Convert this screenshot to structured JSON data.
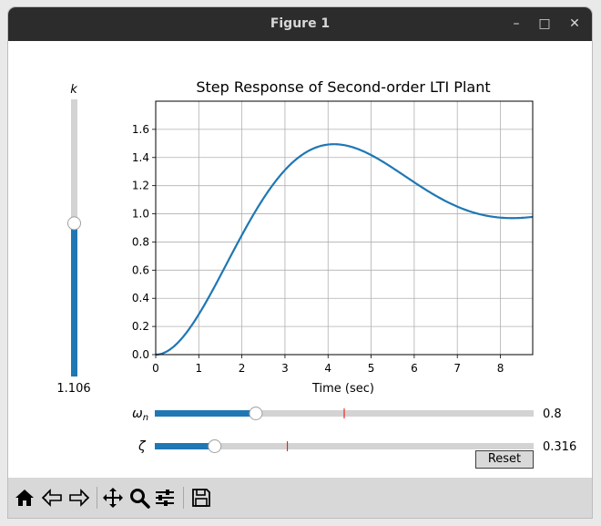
{
  "window": {
    "title": "Figure 1",
    "controls": {
      "minimize": "–",
      "maximize": "□",
      "close": "✕"
    }
  },
  "sliders": {
    "k": {
      "label": "k",
      "value_text": "1.106",
      "min": 0,
      "max": 2,
      "value": 1.106,
      "orientation": "vertical",
      "fill_color": "#1f77b4",
      "track_color": "#d3d3d3"
    },
    "omega_n": {
      "label": "ω",
      "label_sub": "n",
      "value_text": "0.8",
      "min": 0,
      "max": 3,
      "value": 0.8,
      "initial": 1.5,
      "fill_color": "#1f77b4",
      "track_color": "#d3d3d3",
      "initial_marker_color": "#ff0000"
    },
    "zeta": {
      "label": "ζ",
      "value_text": "0.316",
      "min": 0,
      "max": 2,
      "value": 0.316,
      "initial": 0.7,
      "fill_color": "#1f77b4",
      "track_color": "#d3d3d3",
      "initial_marker_color": "#ff0000"
    }
  },
  "reset_button": {
    "label": "Reset"
  },
  "chart_data": {
    "type": "line",
    "title": "Step Response of Second-order LTI Plant",
    "xlabel": "Time (sec)",
    "ylabel": "",
    "xlim": [
      0,
      8.75
    ],
    "ylim": [
      0,
      1.8
    ],
    "xticks": [
      "0",
      "1",
      "2",
      "3",
      "4",
      "5",
      "6",
      "7",
      "8"
    ],
    "yticks": [
      "0.0",
      "0.2",
      "0.4",
      "0.6",
      "0.8",
      "1.0",
      "1.2",
      "1.4",
      "1.6"
    ],
    "grid": true,
    "line_color": "#1f77b4",
    "plant": {
      "k": 1.106,
      "omega_n": 0.8,
      "zeta": 0.316
    },
    "series": [
      {
        "x": [
          0,
          0.5,
          1,
          1.5,
          2,
          2.5,
          3,
          3.5,
          4,
          4.5,
          5,
          5.5,
          6,
          6.5,
          7,
          7.5,
          8,
          8.5,
          8.75
        ],
        "values": [
          0,
          0.09,
          0.32,
          0.62,
          0.94,
          1.2,
          1.37,
          1.47,
          1.5,
          1.46,
          1.39,
          1.3,
          1.21,
          1.12,
          1.05,
          1.0,
          0.97,
          0.97,
          0.98
        ]
      }
    ]
  },
  "toolbar": {
    "buttons": [
      {
        "name": "home-icon",
        "glyph": "⌂"
      },
      {
        "name": "back-icon",
        "glyph": "⇦"
      },
      {
        "name": "forward-icon",
        "glyph": "⇨"
      },
      {
        "name": "pan-icon",
        "glyph": "✥"
      },
      {
        "name": "zoom-icon",
        "glyph": "⚲"
      },
      {
        "name": "configure-subplots-icon",
        "glyph": "☰"
      },
      {
        "name": "save-icon",
        "glyph": "💾"
      }
    ]
  }
}
